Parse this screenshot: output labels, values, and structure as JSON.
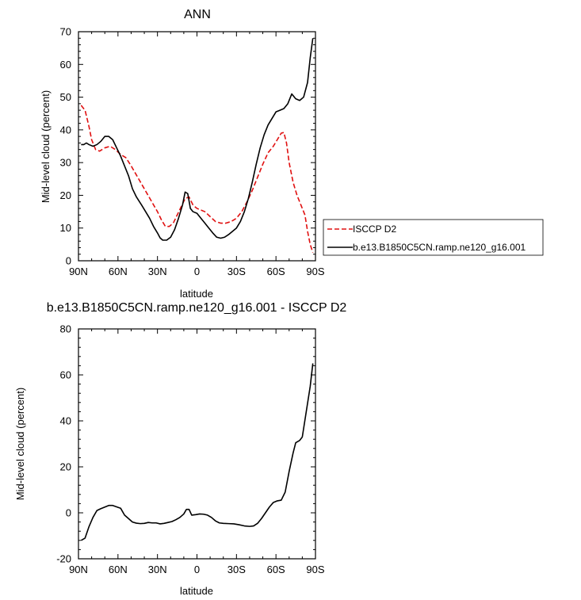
{
  "chart_data": [
    {
      "type": "line",
      "title": "ANN",
      "xlabel": "latitude",
      "ylabel": "Mid-level cloud (percent)",
      "xlim": [
        90,
        -90
      ],
      "ylim": [
        0,
        70
      ],
      "xticks": [
        90,
        60,
        30,
        0,
        -30,
        -60,
        -90
      ],
      "xtick_labels": [
        "90N",
        "60N",
        "30N",
        "0",
        "30S",
        "60S",
        "90S"
      ],
      "yticks": [
        0,
        10,
        20,
        30,
        40,
        50,
        60,
        70
      ],
      "ytick_labels": [
        "0",
        "10",
        "20",
        "30",
        "40",
        "50",
        "60",
        "70"
      ],
      "legend_position": "right",
      "series": [
        {
          "name": "ISCCP D2",
          "color": "#e01010",
          "dash": "dashed",
          "points": [
            [
              88,
              47.5
            ],
            [
              85,
              46
            ],
            [
              82,
              41
            ],
            [
              80,
              37
            ],
            [
              77,
              34
            ],
            [
              74,
              33.5
            ],
            [
              70,
              34.5
            ],
            [
              66,
              35
            ],
            [
              62,
              34
            ],
            [
              58,
              32.5
            ],
            [
              54,
              31.5
            ],
            [
              50,
              29
            ],
            [
              45,
              25.5
            ],
            [
              40,
              22
            ],
            [
              35,
              18.5
            ],
            [
              30,
              15
            ],
            [
              27,
              12.5
            ],
            [
              24,
              10.5
            ],
            [
              21,
              10.5
            ],
            [
              18,
              11.5
            ],
            [
              15,
              14
            ],
            [
              12,
              16.5
            ],
            [
              9,
              19
            ],
            [
              6,
              19.5
            ],
            [
              3,
              17
            ],
            [
              0,
              16
            ],
            [
              -3,
              15.5
            ],
            [
              -6,
              15
            ],
            [
              -10,
              13.5
            ],
            [
              -14,
              12
            ],
            [
              -18,
              11.5
            ],
            [
              -22,
              11.5
            ],
            [
              -26,
              12
            ],
            [
              -30,
              13
            ],
            [
              -34,
              15
            ],
            [
              -38,
              18
            ],
            [
              -42,
              21.5
            ],
            [
              -46,
              25.5
            ],
            [
              -50,
              29.5
            ],
            [
              -54,
              33
            ],
            [
              -58,
              35
            ],
            [
              -61,
              37
            ],
            [
              -64,
              39
            ],
            [
              -66,
              39.2
            ],
            [
              -68,
              36
            ],
            [
              -70,
              30
            ],
            [
              -73,
              24
            ],
            [
              -76,
              20
            ],
            [
              -79,
              17
            ],
            [
              -82,
              14
            ],
            [
              -84,
              9
            ],
            [
              -86,
              5
            ],
            [
              -88,
              2.5
            ]
          ]
        },
        {
          "name": "b.e13.B1850C5CN.ramp.ne120_g16.001",
          "color": "#000000",
          "dash": "solid",
          "points": [
            [
              88,
              35.5
            ],
            [
              86,
              35.5
            ],
            [
              84,
              36
            ],
            [
              82,
              35.5
            ],
            [
              79,
              35
            ],
            [
              76,
              35.5
            ],
            [
              73,
              36.5
            ],
            [
              70,
              38
            ],
            [
              67,
              38
            ],
            [
              64,
              37
            ],
            [
              61,
              34.5
            ],
            [
              58,
              32
            ],
            [
              55,
              29
            ],
            [
              52,
              26
            ],
            [
              49,
              22
            ],
            [
              46,
              19.5
            ],
            [
              42,
              17
            ],
            [
              39,
              15
            ],
            [
              36,
              13
            ],
            [
              33,
              10.5
            ],
            [
              30,
              8.5
            ],
            [
              28,
              7
            ],
            [
              26,
              6.3
            ],
            [
              23,
              6.3
            ],
            [
              20,
              7.2
            ],
            [
              17,
              9.5
            ],
            [
              14,
              13
            ],
            [
              11,
              17
            ],
            [
              9,
              21
            ],
            [
              7,
              20.5
            ],
            [
              5,
              16
            ],
            [
              3,
              15
            ],
            [
              0,
              14.5
            ],
            [
              -3,
              13
            ],
            [
              -6,
              11.5
            ],
            [
              -9,
              10
            ],
            [
              -12,
              8.5
            ],
            [
              -15,
              7.2
            ],
            [
              -18,
              6.9
            ],
            [
              -21,
              7.2
            ],
            [
              -24,
              8
            ],
            [
              -27,
              9
            ],
            [
              -30,
              10
            ],
            [
              -33,
              12
            ],
            [
              -36,
              15
            ],
            [
              -39,
              19
            ],
            [
              -42,
              24
            ],
            [
              -45,
              29.5
            ],
            [
              -48,
              34.5
            ],
            [
              -51,
              38.5
            ],
            [
              -54,
              41.5
            ],
            [
              -57,
              43.5
            ],
            [
              -60,
              45.5
            ],
            [
              -63,
              46
            ],
            [
              -66,
              46.5
            ],
            [
              -69,
              48
            ],
            [
              -72,
              51
            ],
            [
              -75,
              49.5
            ],
            [
              -78,
              49
            ],
            [
              -81,
              50
            ],
            [
              -84,
              54.5
            ],
            [
              -86,
              62
            ],
            [
              -88,
              68
            ]
          ]
        }
      ]
    },
    {
      "type": "line",
      "title": "b.e13.B1850C5CN.ramp.ne120_g16.001 - ISCCP D2",
      "xlabel": "latitude",
      "ylabel": "Mid-level cloud (percent)",
      "xlim": [
        90,
        -90
      ],
      "ylim": [
        -20,
        80
      ],
      "xticks": [
        90,
        60,
        30,
        0,
        -30,
        -60,
        -90
      ],
      "xtick_labels": [
        "90N",
        "60N",
        "30N",
        "0",
        "30S",
        "60S",
        "90S"
      ],
      "yticks": [
        -20,
        0,
        20,
        40,
        60,
        80
      ],
      "ytick_labels": [
        "-20",
        "0",
        "20",
        "40",
        "60",
        "80"
      ],
      "series": [
        {
          "color": "#000000",
          "dash": "solid",
          "points": [
            [
              88,
              -12
            ],
            [
              85,
              -11
            ],
            [
              82,
              -6
            ],
            [
              79,
              -2
            ],
            [
              76,
              1
            ],
            [
              73,
              1.8
            ],
            [
              70,
              2.5
            ],
            [
              67,
              3.2
            ],
            [
              64,
              3.2
            ],
            [
              61,
              2.6
            ],
            [
              58,
              2
            ],
            [
              55,
              -1
            ],
            [
              52,
              -2.5
            ],
            [
              49,
              -4
            ],
            [
              46,
              -4.5
            ],
            [
              43,
              -4.7
            ],
            [
              40,
              -4.6
            ],
            [
              37,
              -4.2
            ],
            [
              34,
              -4.4
            ],
            [
              31,
              -4.4
            ],
            [
              28,
              -4.8
            ],
            [
              25,
              -4.6
            ],
            [
              22,
              -4.2
            ],
            [
              19,
              -3.8
            ],
            [
              16,
              -3
            ],
            [
              13,
              -2
            ],
            [
              10,
              -0.5
            ],
            [
              8,
              1.5
            ],
            [
              6,
              1.5
            ],
            [
              4,
              -1
            ],
            [
              1,
              -0.8
            ],
            [
              -2,
              -0.5
            ],
            [
              -5,
              -0.6
            ],
            [
              -8,
              -1
            ],
            [
              -11,
              -2
            ],
            [
              -14,
              -3.5
            ],
            [
              -17,
              -4.4
            ],
            [
              -20,
              -4.6
            ],
            [
              -24,
              -4.7
            ],
            [
              -28,
              -4.8
            ],
            [
              -32,
              -5.2
            ],
            [
              -36,
              -5.7
            ],
            [
              -40,
              -5.9
            ],
            [
              -43,
              -5.7
            ],
            [
              -46,
              -4.6
            ],
            [
              -49,
              -2.5
            ],
            [
              -52,
              0
            ],
            [
              -55,
              2.5
            ],
            [
              -58,
              4.5
            ],
            [
              -61,
              5.2
            ],
            [
              -64,
              5.5
            ],
            [
              -67,
              9
            ],
            [
              -70,
              18
            ],
            [
              -73,
              26
            ],
            [
              -75,
              30.5
            ],
            [
              -78,
              31.5
            ],
            [
              -80,
              33
            ],
            [
              -83,
              44
            ],
            [
              -86,
              55
            ],
            [
              -88,
              65
            ]
          ]
        }
      ]
    }
  ]
}
